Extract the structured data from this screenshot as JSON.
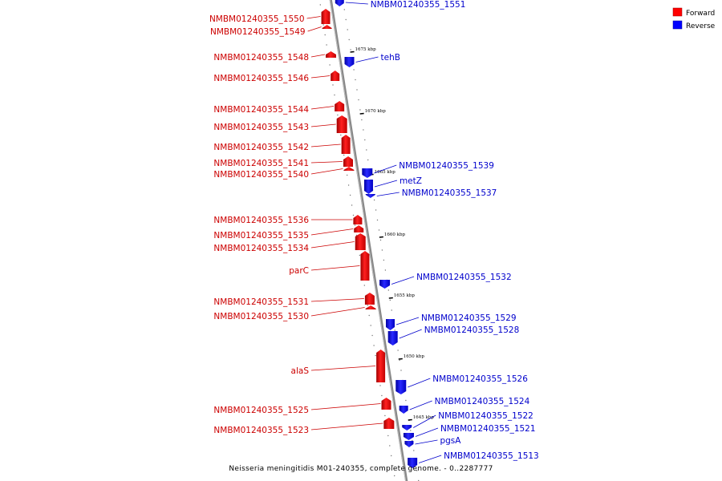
{
  "legend": {
    "forward_label": "Forward",
    "reverse_label": "Reverse",
    "forward_color": "#ff0000",
    "reverse_color": "#0000ff"
  },
  "caption": "Neisseria meningitidis M01-240355, complete genome. - 0..2287777",
  "kbp_ticks": [
    "1675 kbp",
    "1670 kbp",
    "1665 kbp",
    "1660 kbp",
    "1655 kbp",
    "1650 kbp",
    "1645 kbp"
  ],
  "forward_genes": [
    "NMBM01240355_1550",
    "NMBM01240355_1549",
    "NMBM01240355_1548",
    "NMBM01240355_1546",
    "NMBM01240355_1544",
    "NMBM01240355_1543",
    "NMBM01240355_1542",
    "NMBM01240355_1541",
    "NMBM01240355_1540",
    "NMBM01240355_1536",
    "NMBM01240355_1535",
    "NMBM01240355_1534",
    "parC",
    "NMBM01240355_1531",
    "NMBM01240355_1530",
    "alaS",
    "NMBM01240355_1525",
    "NMBM01240355_1523"
  ],
  "reverse_genes": [
    "NMBM01240355_1551",
    "tehB",
    "NMBM01240355_1539",
    "metZ",
    "NMBM01240355_1537",
    "NMBM01240355_1532",
    "NMBM01240355_1529",
    "NMBM01240355_1528",
    "NMBM01240355_1526",
    "NMBM01240355_1524",
    "NMBM01240355_1522",
    "NMBM01240355_1521",
    "pgsA",
    "NMBM01240355_1513"
  ]
}
